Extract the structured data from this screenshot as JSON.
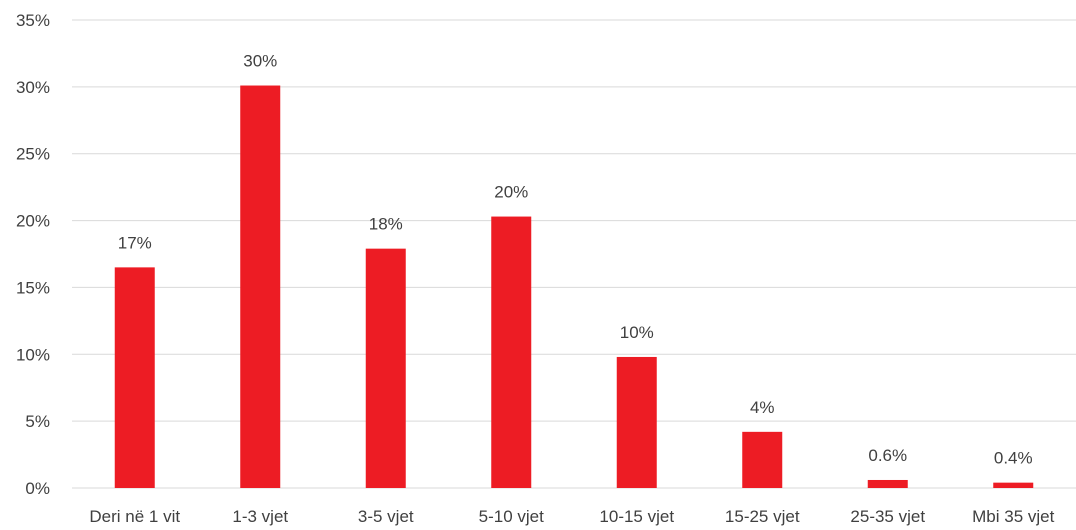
{
  "chart_data": {
    "type": "bar",
    "categories": [
      "Deri në 1 vit",
      "1-3 vjet",
      "3-5 vjet",
      "5-10 vjet",
      "10-15 vjet",
      "15-25 vjet",
      "25-35 vjet",
      "Mbi 35 vjet"
    ],
    "values": [
      16.5,
      30.1,
      17.9,
      20.3,
      9.8,
      4.2,
      0.6,
      0.4
    ],
    "data_labels": [
      "17%",
      "30%",
      "18%",
      "20%",
      "10%",
      "4%",
      "0.6%",
      "0.4%"
    ],
    "y_ticks": [
      "0%",
      "5%",
      "10%",
      "15%",
      "20%",
      "25%",
      "30%",
      "35%"
    ],
    "ylim": [
      0,
      35
    ],
    "grid": true,
    "bar_color": "#ed1c24"
  }
}
